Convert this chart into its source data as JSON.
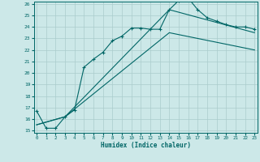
{
  "xlabel": "Humidex (Indice chaleur)",
  "xlim": [
    0,
    23
  ],
  "ylim": [
    15,
    26
  ],
  "yticks": [
    15,
    16,
    17,
    18,
    19,
    20,
    21,
    22,
    23,
    24,
    25,
    26
  ],
  "xticks": [
    0,
    1,
    2,
    3,
    4,
    5,
    6,
    7,
    8,
    9,
    10,
    11,
    12,
    13,
    14,
    15,
    16,
    17,
    18,
    19,
    20,
    21,
    22,
    23
  ],
  "background_color": "#cce8e8",
  "grid_color": "#aacccc",
  "line_color": "#006666",
  "line1_x": [
    0,
    1,
    2,
    3,
    4,
    5,
    6,
    7,
    8,
    9,
    10,
    11,
    12,
    13,
    14,
    15,
    16,
    17,
    18,
    19,
    20,
    21,
    22,
    23
  ],
  "line1_y": [
    16.7,
    15.2,
    15.2,
    16.2,
    16.8,
    20.5,
    21.2,
    21.8,
    22.8,
    23.2,
    23.9,
    23.9,
    23.8,
    23.8,
    25.5,
    26.3,
    26.5,
    25.5,
    24.8,
    24.5,
    24.2,
    24.0,
    24.0,
    23.8
  ],
  "line2_x": [
    0,
    3,
    14,
    23
  ],
  "line2_y": [
    15.5,
    16.2,
    25.5,
    23.5
  ],
  "line3_x": [
    0,
    3,
    14,
    23
  ],
  "line3_y": [
    15.5,
    16.2,
    23.5,
    22.0
  ]
}
